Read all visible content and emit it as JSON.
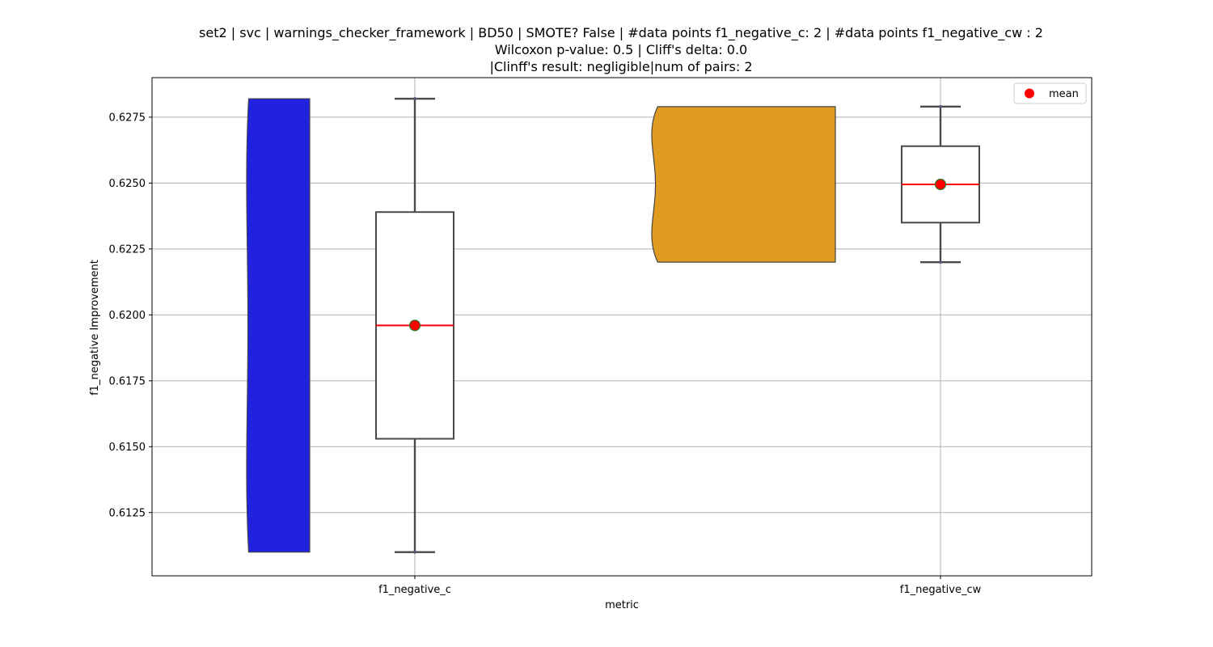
{
  "chart_data": {
    "type": "violin-box",
    "title_lines": [
      "set2 | svc | warnings_checker_framework | BD50 | SMOTE? False | #data points f1_negative_c: 2 | #data points f1_negative_cw : 2",
      "Wilcoxon p-value: 0.5 | Cliff's delta: 0.0",
      "|Clinff's result: negligible|num of pairs: 2"
    ],
    "xlabel": "metric",
    "ylabel": "f1_negative Improvement",
    "ylim": [
      0.6101,
      0.629
    ],
    "yticks": [
      0.6125,
      0.615,
      0.6175,
      0.62,
      0.6225,
      0.625,
      0.6275
    ],
    "ytick_labels": [
      "0.6125",
      "0.6150",
      "0.6175",
      "0.6200",
      "0.6225",
      "0.6250",
      "0.6275"
    ],
    "grid": true,
    "legend": {
      "label": "mean",
      "position": "top-right",
      "marker_color": "#ff0000"
    },
    "categories": [
      "f1_negative_c",
      "f1_negative_cw"
    ],
    "series": [
      {
        "category": "f1_negative_c",
        "violin_color": "#2121e0",
        "points": [
          0.611,
          0.6282
        ],
        "box": {
          "whisker_low": 0.611,
          "q1": 0.6153,
          "median": 0.6196,
          "q3": 0.6239,
          "whisker_high": 0.6282
        },
        "mean": 0.6196
      },
      {
        "category": "f1_negative_cw",
        "violin_color": "#e09c21",
        "points": [
          0.622,
          0.6279
        ],
        "box": {
          "whisker_low": 0.622,
          "q1": 0.6235,
          "median": 0.62495,
          "q3": 0.6264,
          "whisker_high": 0.6279
        },
        "mean": 0.62495
      }
    ]
  }
}
